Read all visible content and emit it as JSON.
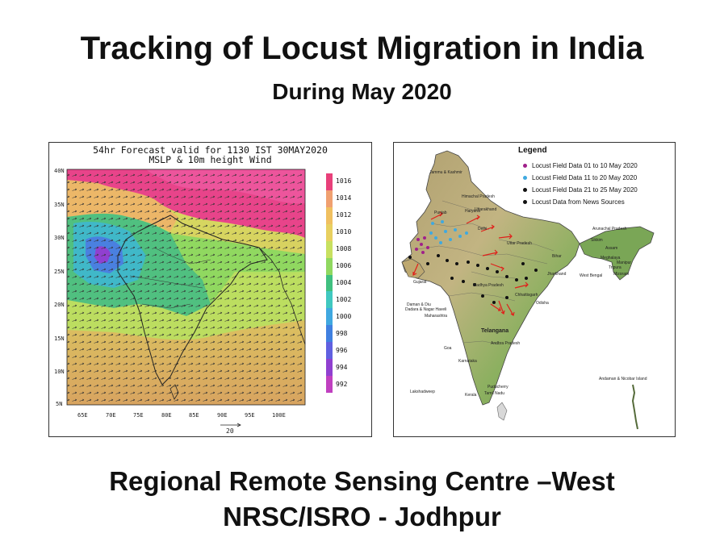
{
  "slide": {
    "title": "Tracking of Locust Migration in India",
    "subtitle": "During May 2020",
    "footer_line1": "Regional Remote Sensing Centre –West",
    "footer_line2": "NRSC/ISRO - Jodhpur"
  },
  "forecast_map": {
    "title_line1": "54hr Forecast valid for 1130 IST 30MAY2020",
    "title_line2": "MSLP & 10m height Wind",
    "lat_ticks": [
      "40N",
      "35N",
      "30N",
      "25N",
      "20N",
      "15N",
      "10N",
      "5N"
    ],
    "lon_ticks": [
      "65E",
      "70E",
      "75E",
      "80E",
      "85E",
      "90E",
      "95E",
      "100E"
    ],
    "colorbar_labels": [
      "1016",
      "1014",
      "1012",
      "1010",
      "1008",
      "1006",
      "1004",
      "1002",
      "1000",
      "998",
      "996",
      "994",
      "992"
    ],
    "colorbar_colors": [
      "#e8407a",
      "#f0a070",
      "#f0c060",
      "#e8d060",
      "#c8e060",
      "#90d860",
      "#40c080",
      "#40c8c0",
      "#40a8e0",
      "#4080e0",
      "#6060e0",
      "#9040d0",
      "#c040c0"
    ],
    "wind_scale_label": "20"
  },
  "locust_map": {
    "legend_title": "Legend",
    "legend_items": [
      {
        "label": "Locust Field Data 01 to 10 May 2020",
        "color": "#a0208a"
      },
      {
        "label": "Locust Field Data 11 to 20 May 2020",
        "color": "#3fa9e0"
      },
      {
        "label": "Locust Field Data 21 to 25 May 2020",
        "color": "#111111"
      },
      {
        "label": "Locust Data from News Sources",
        "color": "#111111"
      }
    ],
    "region_labels": [
      {
        "name": "Jammu & Kashmir"
      },
      {
        "name": "Himachal Pradesh"
      },
      {
        "name": "Punjab"
      },
      {
        "name": "Uttarakhand"
      },
      {
        "name": "Haryana"
      },
      {
        "name": "Delhi"
      },
      {
        "name": "Uttar Pradesh"
      },
      {
        "name": "Bihar"
      },
      {
        "name": "Arunachal Pradesh"
      },
      {
        "name": "Gujarat"
      },
      {
        "name": "Madhya Pradesh"
      },
      {
        "name": "Jharkhand"
      },
      {
        "name": "West Bengal"
      },
      {
        "name": "Chhattisgarh"
      },
      {
        "name": "Odisha"
      },
      {
        "name": "Daman & Diu"
      },
      {
        "name": "Dadara & Nagar Haveli"
      },
      {
        "name": "Maharashtra"
      },
      {
        "name": "Telangana"
      },
      {
        "name": "Andhra Pradesh"
      },
      {
        "name": "Karnataka"
      },
      {
        "name": "Goa"
      },
      {
        "name": "Puducherry"
      },
      {
        "name": "Tamil Nadu"
      },
      {
        "name": "Kerala"
      },
      {
        "name": "Lakshadweep"
      },
      {
        "name": "Andaman & Nicobar Island"
      },
      {
        "name": "Assam"
      },
      {
        "name": "Meghalaya"
      },
      {
        "name": "Manipur"
      },
      {
        "name": "Mizoram"
      },
      {
        "name": "Tripura"
      },
      {
        "name": "Sikkim"
      }
    ]
  }
}
